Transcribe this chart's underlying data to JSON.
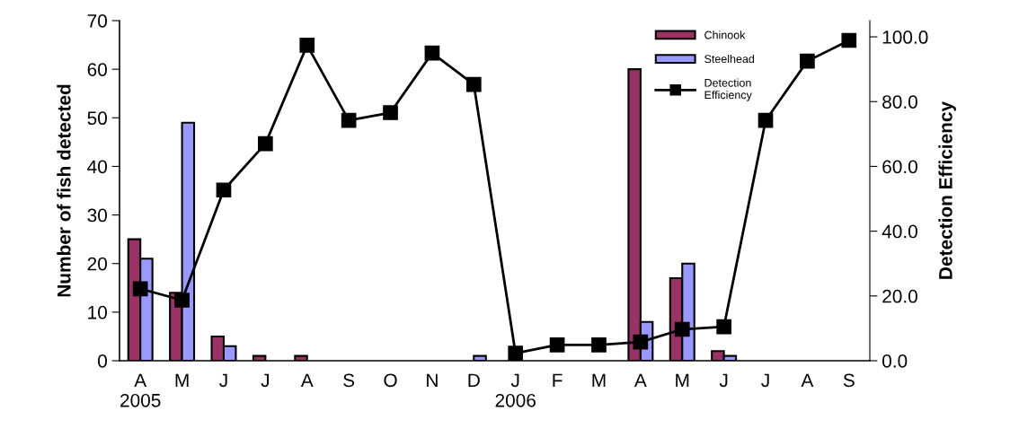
{
  "chart_data": {
    "type": "bar",
    "xlabel": null,
    "ylabel": "Number of fish detected",
    "y2label": "Detection Efficiency",
    "categories": [
      "A\n2005",
      "M",
      "J",
      "J",
      "A",
      "S",
      "O",
      "N",
      "D",
      "J\n2006",
      "F",
      "M",
      "A",
      "M",
      "J",
      "J",
      "A",
      "S"
    ],
    "series": [
      {
        "name": "Chinook",
        "color": "#993366",
        "values": [
          25,
          14,
          5,
          1,
          1,
          null,
          null,
          null,
          null,
          null,
          null,
          null,
          60,
          17,
          2,
          null,
          null,
          null
        ]
      },
      {
        "name": "Steelhead",
        "color": "#9999ff",
        "values": [
          21,
          49,
          3,
          null,
          null,
          null,
          null,
          null,
          1,
          null,
          null,
          null,
          8,
          20,
          1,
          null,
          null,
          null
        ]
      },
      {
        "name": "Detection Efficiency",
        "type": "line",
        "axis": "y2",
        "color": "#000000",
        "marker": "square",
        "line_style": "solid",
        "values": [
          22.2,
          18.7,
          52.7,
          67.0,
          97.4,
          74.2,
          76.6,
          95.0,
          85.3,
          2.3,
          4.9,
          4.9,
          5.8,
          9.7,
          10.5,
          74.2,
          92.5,
          98.9
        ]
      }
    ],
    "ylim": [
      0,
      70
    ],
    "yticks": [
      0,
      10,
      20,
      30,
      40,
      50,
      60,
      70
    ],
    "y2lim": [
      0,
      105
    ],
    "y2ticks": [
      {
        "value": 0,
        "label": "0.0"
      },
      {
        "value": 20,
        "label": "20.0"
      },
      {
        "value": 40,
        "label": "40.0"
      },
      {
        "value": 60,
        "label": "60.0"
      },
      {
        "value": 80,
        "label": "80.0"
      },
      {
        "value": 100,
        "label": "100.0"
      }
    ],
    "grid": false,
    "legend": "top right"
  }
}
